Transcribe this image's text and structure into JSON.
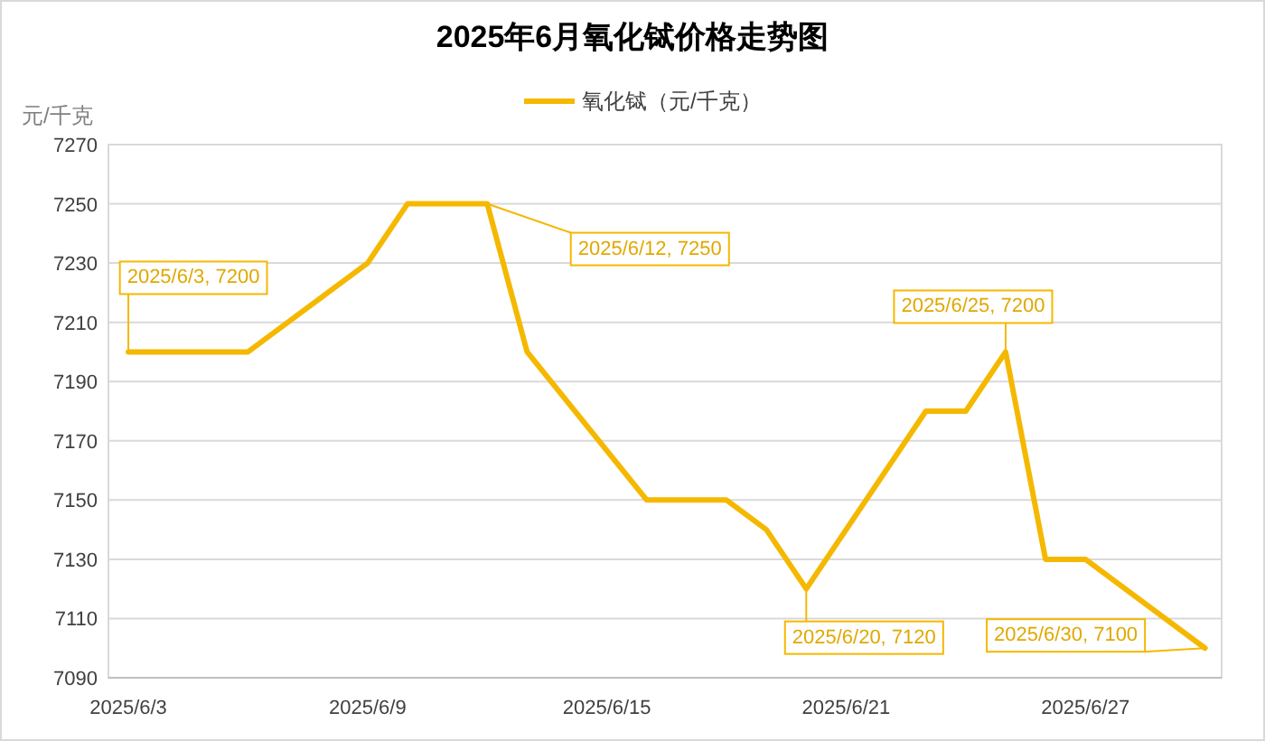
{
  "chart_data": {
    "type": "line",
    "title": "2025年6月氧化铽价格走势图",
    "ylabel": "元/千克",
    "x": [
      "2025-06-03",
      "2025-06-04",
      "2025-06-05",
      "2025-06-06",
      "2025-06-09",
      "2025-06-10",
      "2025-06-11",
      "2025-06-12",
      "2025-06-13",
      "2025-06-16",
      "2025-06-17",
      "2025-06-18",
      "2025-06-19",
      "2025-06-20",
      "2025-06-23",
      "2025-06-24",
      "2025-06-25",
      "2025-06-26",
      "2025-06-27",
      "2025-06-30"
    ],
    "series": [
      {
        "name": "氧化铽（元/千克）",
        "color": "#f5b800",
        "values": [
          7200,
          7200,
          7200,
          7200,
          7230,
          7250,
          7250,
          7250,
          7200,
          7150,
          7150,
          7150,
          7140,
          7120,
          7180,
          7180,
          7200,
          7130,
          7130,
          7100
        ]
      }
    ],
    "xlim": [
      "2025-06-02T12:00",
      "2025-06-30T10:00"
    ],
    "xticks": [
      {
        "value": "2025-06-03",
        "label": "2025/6/3"
      },
      {
        "value": "2025-06-09",
        "label": "2025/6/9"
      },
      {
        "value": "2025-06-15",
        "label": "2025/6/15"
      },
      {
        "value": "2025-06-21",
        "label": "2025/6/21"
      },
      {
        "value": "2025-06-27",
        "label": "2025/6/27"
      }
    ],
    "ylim": [
      7090,
      7270
    ],
    "yticks": [
      7090,
      7110,
      7130,
      7150,
      7170,
      7190,
      7210,
      7230,
      7250,
      7270
    ],
    "grid": "y",
    "legend": "top",
    "marker": "none",
    "line_style": "solid",
    "annotations": [
      {
        "text": "2025/6/3, 7200",
        "x": "2025-06-03",
        "y": 7200
      },
      {
        "text": "2025/6/12, 7250",
        "x": "2025-06-12",
        "y": 7250
      },
      {
        "text": "2025/6/25, 7200",
        "x": "2025-06-25",
        "y": 7200
      },
      {
        "text": "2025/6/20, 7120",
        "x": "2025-06-20",
        "y": 7120
      },
      {
        "text": "2025/6/30, 7100",
        "x": "2025-06-30",
        "y": 7100
      }
    ]
  }
}
